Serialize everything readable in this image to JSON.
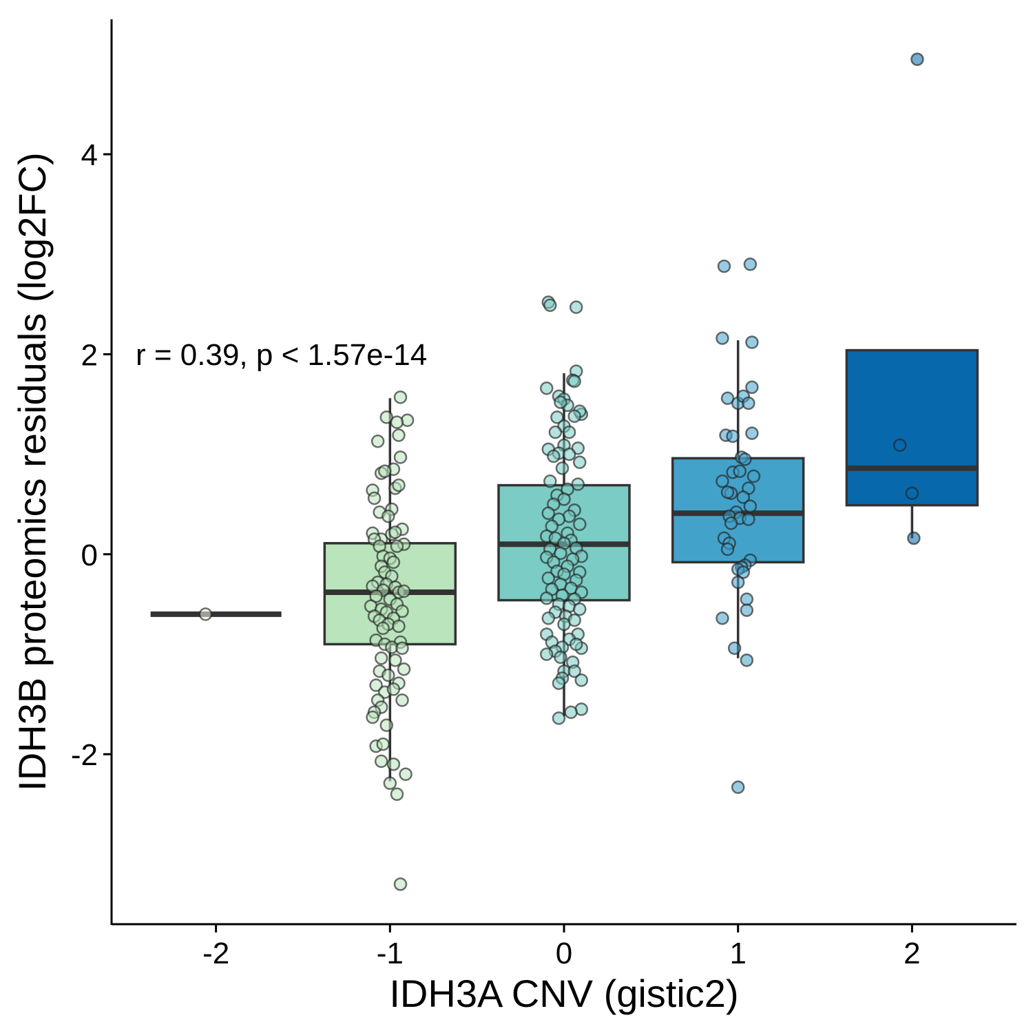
{
  "chart_data": {
    "type": "box",
    "xlabel": "IDH3A CNV (gistic2)",
    "ylabel": "IDH3B proteomics residuals (log2FC)",
    "annotation": "r =  0.39,  p <  1.57e-14",
    "xlim": [
      -2.6,
      2.6
    ],
    "ylim": [
      -3.7,
      5.35
    ],
    "x_ticks": [
      -2,
      -1,
      0,
      1,
      2
    ],
    "x_tick_labels": [
      "-2",
      "-1",
      "0",
      "1",
      "2"
    ],
    "y_ticks": [
      -2,
      0,
      2,
      4
    ],
    "y_tick_labels": [
      "-2",
      "0",
      "2",
      "4"
    ],
    "grid": false,
    "legend": "none",
    "series": [
      {
        "category": -2,
        "color": "#f0f9e8",
        "min": -0.6,
        "q1": -0.6,
        "median": -0.6,
        "q3": -0.6,
        "max": -0.6,
        "points": [
          [
            -2.06,
            -0.6
          ]
        ]
      },
      {
        "category": -1,
        "color": "#bae4bc",
        "min": -2.27,
        "q1": -0.9,
        "median": -0.38,
        "q3": 0.11,
        "max": 1.56,
        "points": [
          [
            -0.94,
            1.57
          ],
          [
            -1.02,
            1.37
          ],
          [
            -0.9,
            1.34
          ],
          [
            -0.96,
            1.32
          ],
          [
            -1.07,
            1.13
          ],
          [
            -0.95,
            1.19
          ],
          [
            -0.94,
            0.97
          ],
          [
            -0.98,
            0.85
          ],
          [
            -1.05,
            0.81
          ],
          [
            -1.03,
            0.83
          ],
          [
            -0.97,
            0.66
          ],
          [
            -1.1,
            0.64
          ],
          [
            -0.95,
            0.69
          ],
          [
            -1.09,
            0.56
          ],
          [
            -0.99,
            0.45
          ],
          [
            -1.06,
            0.42
          ],
          [
            -1.01,
            0.38
          ],
          [
            -0.93,
            0.25
          ],
          [
            -1.1,
            0.21
          ],
          [
            -1.05,
            0.15
          ],
          [
            -0.99,
            0.2
          ],
          [
            -0.97,
            0.22
          ],
          [
            -0.92,
            0.1
          ],
          [
            -1.09,
            0.15
          ],
          [
            -1.06,
            0.08
          ],
          [
            -0.96,
            0.08
          ],
          [
            -1.04,
            -0.02
          ],
          [
            -1.0,
            -0.04
          ],
          [
            -0.98,
            -0.08
          ],
          [
            -1.05,
            -0.12
          ],
          [
            -1.03,
            -0.18
          ],
          [
            -0.99,
            -0.22
          ],
          [
            -1.07,
            -0.28
          ],
          [
            -1.02,
            -0.3
          ],
          [
            -0.97,
            -0.33
          ],
          [
            -1.1,
            -0.32
          ],
          [
            -1.04,
            -0.36
          ],
          [
            -0.95,
            -0.38
          ],
          [
            -0.92,
            -0.37
          ],
          [
            -1.08,
            -0.42
          ],
          [
            -1.0,
            -0.45
          ],
          [
            -0.96,
            -0.5
          ],
          [
            -1.11,
            -0.52
          ],
          [
            -1.05,
            -0.55
          ],
          [
            -1.02,
            -0.58
          ],
          [
            -0.93,
            -0.57
          ],
          [
            -1.09,
            -0.62
          ],
          [
            -0.98,
            -0.64
          ],
          [
            -1.06,
            -0.66
          ],
          [
            -1.01,
            -0.7
          ],
          [
            -0.95,
            -0.72
          ],
          [
            -1.04,
            -0.74
          ],
          [
            -1.08,
            -0.86
          ],
          [
            -0.94,
            -0.88
          ],
          [
            -1.03,
            -0.9
          ],
          [
            -0.99,
            -0.93
          ],
          [
            -0.93,
            -0.94
          ],
          [
            -1.05,
            -1.04
          ],
          [
            -0.97,
            -1.06
          ],
          [
            -1.06,
            -1.17
          ],
          [
            -0.92,
            -1.15
          ],
          [
            -1.01,
            -1.21
          ],
          [
            -0.95,
            -1.29
          ],
          [
            -1.08,
            -1.31
          ],
          [
            -1.03,
            -1.38
          ],
          [
            -0.98,
            -1.35
          ],
          [
            -1.07,
            -1.46
          ],
          [
            -0.93,
            -1.46
          ],
          [
            -1.05,
            -1.53
          ],
          [
            -1.09,
            -1.58
          ],
          [
            -1.1,
            -1.63
          ],
          [
            -1.02,
            -1.71
          ],
          [
            -1.08,
            -1.92
          ],
          [
            -1.04,
            -1.9
          ],
          [
            -1.05,
            -2.07
          ],
          [
            -0.98,
            -2.1
          ],
          [
            -0.91,
            -2.2
          ],
          [
            -1.0,
            -2.29
          ],
          [
            -0.96,
            -2.4
          ],
          [
            -0.94,
            -3.3
          ]
        ]
      },
      {
        "category": 0,
        "color": "#7bccc4",
        "min": -1.62,
        "q1": -0.46,
        "median": 0.1,
        "q3": 0.69,
        "max": 1.81,
        "points": [
          [
            -0.09,
            2.52
          ],
          [
            -0.08,
            2.49
          ],
          [
            0.07,
            2.47
          ],
          [
            0.07,
            1.83
          ],
          [
            0.05,
            1.74
          ],
          [
            -0.1,
            1.66
          ],
          [
            0.06,
            1.73
          ],
          [
            -0.03,
            1.58
          ],
          [
            0.0,
            1.55
          ],
          [
            0.02,
            1.49
          ],
          [
            -0.02,
            1.52
          ],
          [
            0.1,
            1.4
          ],
          [
            0.09,
            1.43
          ],
          [
            -0.04,
            1.37
          ],
          [
            0.06,
            1.38
          ],
          [
            0.0,
            1.28
          ],
          [
            0.03,
            1.22
          ],
          [
            -0.05,
            1.22
          ],
          [
            0.08,
            1.06
          ],
          [
            -0.09,
            1.05
          ],
          [
            0.0,
            1.09
          ],
          [
            -0.03,
            1.01
          ],
          [
            -0.06,
            0.98
          ],
          [
            0.03,
            1.0
          ],
          [
            -0.01,
            0.86
          ],
          [
            0.09,
            0.92
          ],
          [
            -0.08,
            0.73
          ],
          [
            0.08,
            0.7
          ],
          [
            0.02,
            0.65
          ],
          [
            -0.04,
            0.59
          ],
          [
            0.0,
            0.55
          ],
          [
            -0.06,
            0.5
          ],
          [
            0.06,
            0.44
          ],
          [
            -0.09,
            0.41
          ],
          [
            0.03,
            0.38
          ],
          [
            -0.03,
            0.35
          ],
          [
            0.09,
            0.3
          ],
          [
            -0.07,
            0.28
          ],
          [
            0.02,
            0.21
          ],
          [
            -0.1,
            0.18
          ],
          [
            -0.05,
            0.16
          ],
          [
            0.04,
            0.14
          ],
          [
            0.0,
            0.11
          ],
          [
            -0.08,
            0.05
          ],
          [
            0.07,
            0.06
          ],
          [
            -0.02,
            0.01
          ],
          [
            0.1,
            -0.02
          ],
          [
            -0.1,
            -0.03
          ],
          [
            0.05,
            -0.05
          ],
          [
            -0.06,
            -0.08
          ],
          [
            0.02,
            -0.12
          ],
          [
            -0.04,
            -0.17
          ],
          [
            0.09,
            -0.18
          ],
          [
            0.0,
            -0.2
          ],
          [
            -0.09,
            -0.24
          ],
          [
            0.07,
            -0.26
          ],
          [
            -0.02,
            -0.3
          ],
          [
            0.04,
            -0.34
          ],
          [
            -0.07,
            -0.35
          ],
          [
            0.1,
            -0.38
          ],
          [
            -0.01,
            -0.41
          ],
          [
            0.06,
            -0.45
          ],
          [
            -0.1,
            -0.44
          ],
          [
            -0.03,
            -0.5
          ],
          [
            0.03,
            -0.52
          ],
          [
            0.09,
            -0.55
          ],
          [
            -0.05,
            -0.58
          ],
          [
            0.01,
            -0.62
          ],
          [
            -0.09,
            -0.64
          ],
          [
            0.06,
            -0.66
          ],
          [
            0.0,
            -0.7
          ],
          [
            0.08,
            -0.8
          ],
          [
            -0.1,
            -0.8
          ],
          [
            0.03,
            -0.85
          ],
          [
            -0.07,
            -0.88
          ],
          [
            -0.01,
            -0.93
          ],
          [
            0.1,
            -0.94
          ],
          [
            0.07,
            -0.9
          ],
          [
            -0.05,
            -0.97
          ],
          [
            -0.02,
            -1.03
          ],
          [
            0.05,
            -1.08
          ],
          [
            -0.1,
            -1.0
          ],
          [
            0.0,
            -1.17
          ],
          [
            0.06,
            -1.17
          ],
          [
            -0.01,
            -1.24
          ],
          [
            -0.03,
            -1.29
          ],
          [
            0.1,
            -1.26
          ],
          [
            0.1,
            -1.55
          ],
          [
            0.04,
            -1.58
          ],
          [
            -0.03,
            -1.64
          ]
        ]
      },
      {
        "category": 1,
        "color": "#43a2ca",
        "min": -1.04,
        "q1": -0.08,
        "median": 0.41,
        "q3": 0.96,
        "max": 2.14,
        "points": [
          [
            0.92,
            2.88
          ],
          [
            1.07,
            2.9
          ],
          [
            0.91,
            2.16
          ],
          [
            1.08,
            2.12
          ],
          [
            1.08,
            1.67
          ],
          [
            0.94,
            1.56
          ],
          [
            1.0,
            1.51
          ],
          [
            1.03,
            1.58
          ],
          [
            1.06,
            1.51
          ],
          [
            0.93,
            1.19
          ],
          [
            0.97,
            1.18
          ],
          [
            1.08,
            1.21
          ],
          [
            1.02,
            0.97
          ],
          [
            1.04,
            0.95
          ],
          [
            1.09,
            0.78
          ],
          [
            0.97,
            0.82
          ],
          [
            1.01,
            0.83
          ],
          [
            0.91,
            0.73
          ],
          [
            1.06,
            0.66
          ],
          [
            0.96,
            0.61
          ],
          [
            0.94,
            0.62
          ],
          [
            1.03,
            0.57
          ],
          [
            1.07,
            0.48
          ],
          [
            0.99,
            0.42
          ],
          [
            0.95,
            0.38
          ],
          [
            1.01,
            0.36
          ],
          [
            1.06,
            0.35
          ],
          [
            0.96,
            0.31
          ],
          [
            0.92,
            0.16
          ],
          [
            0.95,
            0.11
          ],
          [
            0.94,
            0.05
          ],
          [
            1.07,
            -0.06
          ],
          [
            1.04,
            -0.11
          ],
          [
            1.02,
            -0.13
          ],
          [
            1.0,
            -0.15
          ],
          [
            1.03,
            -0.18
          ],
          [
            1.0,
            -0.28
          ],
          [
            1.05,
            -0.45
          ],
          [
            1.05,
            -0.56
          ],
          [
            0.91,
            -0.64
          ],
          [
            0.98,
            -0.94
          ],
          [
            1.05,
            -1.06
          ],
          [
            1.0,
            -2.33
          ]
        ]
      },
      {
        "category": 2,
        "color": "#0868ac",
        "min": 0.16,
        "q1": 0.49,
        "median": 0.86,
        "q3": 2.04,
        "max": 2.04,
        "points": [
          [
            2.03,
            4.95
          ],
          [
            1.93,
            1.09
          ],
          [
            2.0,
            0.61
          ],
          [
            2.01,
            0.16
          ]
        ]
      }
    ]
  }
}
